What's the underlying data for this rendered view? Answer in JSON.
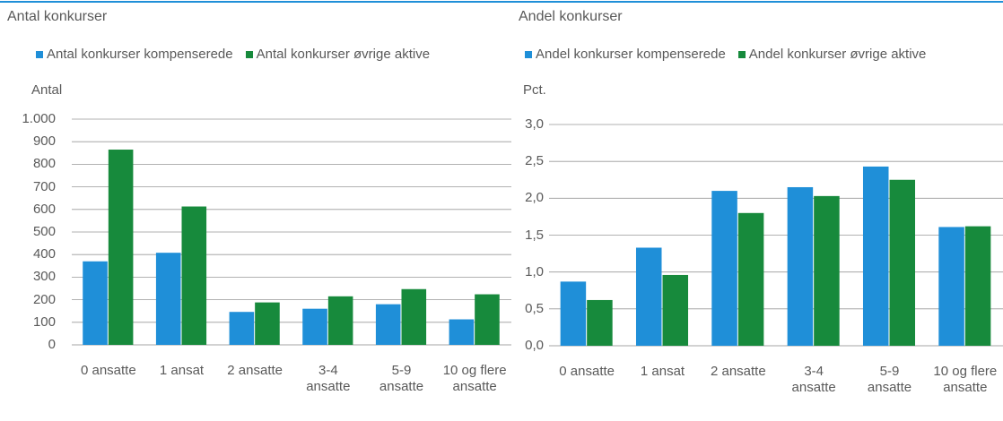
{
  "chart_data": [
    {
      "type": "bar",
      "title": "Antal konkurser",
      "y_label": "Antal",
      "categories": [
        "0 ansatte",
        "1 ansat",
        "2 ansatte",
        "3-4 ansatte",
        "5-9 ansatte",
        "10 og flere ansatte"
      ],
      "series": [
        {
          "name": "Antal konkurser kompenserede",
          "color": "#1f8fd8",
          "values": [
            370,
            408,
            146,
            160,
            180,
            113
          ]
        },
        {
          "name": "Antal konkurser øvrige aktive",
          "color": "#178a3c",
          "values": [
            865,
            613,
            188,
            215,
            247,
            224
          ]
        }
      ],
      "ylim": [
        0,
        1000
      ],
      "yticks": [
        0,
        100,
        200,
        300,
        400,
        500,
        600,
        700,
        800,
        900,
        {
          "value": 1000,
          "label": "1.000"
        }
      ],
      "grid": true
    },
    {
      "type": "bar",
      "title": "Andel konkurser",
      "y_label": "Pct.",
      "categories": [
        "0 ansatte",
        "1 ansat",
        "2 ansatte",
        "3-4 ansatte",
        "5-9 ansatte",
        "10 og flere ansatte"
      ],
      "series": [
        {
          "name": "Andel konkurser kompenserede",
          "color": "#1f8fd8",
          "values": [
            0.87,
            1.33,
            2.1,
            2.15,
            2.43,
            1.61
          ]
        },
        {
          "name": "Andel konkurser øvrige aktive",
          "color": "#178a3c",
          "values": [
            0.62,
            0.96,
            1.8,
            2.03,
            2.25,
            1.62
          ]
        }
      ],
      "ylim": [
        0,
        3
      ],
      "yticks": [
        {
          "value": 0,
          "label": "0,0"
        },
        {
          "value": 0.5,
          "label": "0,5"
        },
        {
          "value": 1,
          "label": "1,0"
        },
        {
          "value": 1.5,
          "label": "1,5"
        },
        {
          "value": 2,
          "label": "2,0"
        },
        {
          "value": 2.5,
          "label": "2,5"
        },
        {
          "value": 3,
          "label": "3,0"
        }
      ],
      "grid": true
    }
  ]
}
